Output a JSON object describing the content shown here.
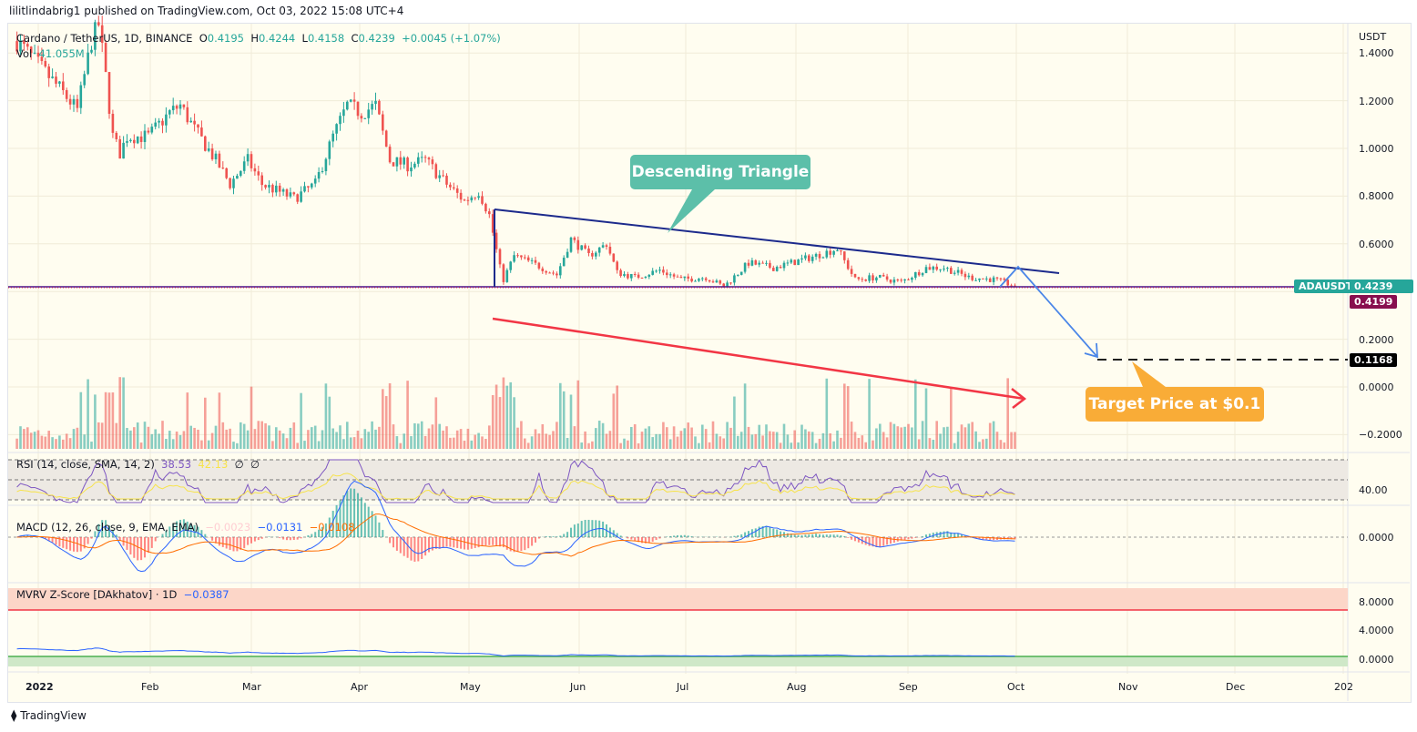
{
  "header": {
    "published": "lilitlindabrig1 published on TradingView.com, Oct 03, 2022 15:08 UTC+4"
  },
  "legend": {
    "symbol": "Cardano / TetherUS, 1D, BINANCE",
    "o_label": "O",
    "o": "0.4195",
    "h_label": "H",
    "h": "0.4244",
    "l_label": "L",
    "l": "0.4158",
    "c_label": "C",
    "c": "0.4239",
    "change": "+0.0045 (+1.07%)",
    "vol_label": "Vol",
    "vol": "41.055M"
  },
  "rsi": {
    "label": "RSI (14, close, SMA, 14, 2)",
    "v1": "38.53",
    "v2": "42.13",
    "v3": "∅",
    "v4": "∅",
    "tick": "40.00"
  },
  "macd": {
    "label": "MACD (12, 26, close, 9, EMA, EMA)",
    "hist": "−0.0023",
    "macd": "−0.0131",
    "signal": "−0.0108",
    "tick": "0.0000"
  },
  "mvrv": {
    "label": "MVRV Z-Score [DAkhatov] · 1D",
    "value": "−0.0387",
    "ticks": [
      "8.0000",
      "4.0000",
      "0.0000"
    ]
  },
  "price_axis": {
    "currency": "USDT",
    "ticks": [
      "1.4000",
      "1.2000",
      "1.0000",
      "0.8000",
      "0.6000",
      "0.2000",
      "0.0000",
      "−0.2000"
    ],
    "last_tag": "0.4239",
    "symbol_tag": "ADAUSDT",
    "low_tag": "0.4199",
    "target_tag": "0.1168"
  },
  "time_axis": [
    "2022",
    "Feb",
    "Mar",
    "Apr",
    "May",
    "Jun",
    "Jul",
    "Aug",
    "Sep",
    "Oct",
    "Nov",
    "Dec",
    "202"
  ],
  "annotations": {
    "triangle": "Descending Triangle",
    "target": "Target Price at $0.1"
  },
  "footer": {
    "brand": "TradingView"
  },
  "colors": {
    "up": "#26a69a",
    "down": "#ef5350",
    "triangle_line": "#1c2a8c",
    "bear_arrow": "#f23645",
    "projection": "#4a86e8",
    "callout_teal": "#5cbfa9",
    "callout_orange": "#f9ac37"
  },
  "chart_data": {
    "type": "candlestick",
    "symbol": "ADAUSDT",
    "ylim": [
      -0.25,
      1.5
    ],
    "closes": [
      [
        "2021-12-26",
        1.45
      ],
      [
        "2022-01-01",
        1.35
      ],
      [
        "2022-01-07",
        1.25
      ],
      [
        "2022-01-12",
        1.16
      ],
      [
        "2022-01-16",
        1.45
      ],
      [
        "2022-01-18",
        1.52
      ],
      [
        "2022-01-20",
        1.3
      ],
      [
        "2022-01-22",
        1.05
      ],
      [
        "2022-01-24",
        0.98
      ],
      [
        "2022-01-26",
        1.05
      ],
      [
        "2022-02-01",
        1.05
      ],
      [
        "2022-02-07",
        1.15
      ],
      [
        "2022-02-10",
        1.18
      ],
      [
        "2022-02-14",
        1.08
      ],
      [
        "2022-02-20",
        0.95
      ],
      [
        "2022-02-24",
        0.85
      ],
      [
        "2022-03-01",
        0.95
      ],
      [
        "2022-03-05",
        0.85
      ],
      [
        "2022-03-14",
        0.79
      ],
      [
        "2022-03-20",
        0.85
      ],
      [
        "2022-03-25",
        1.05
      ],
      [
        "2022-03-29",
        1.18
      ],
      [
        "2022-04-02",
        1.15
      ],
      [
        "2022-04-06",
        1.18
      ],
      [
        "2022-04-10",
        0.95
      ],
      [
        "2022-04-15",
        0.93
      ],
      [
        "2022-04-20",
        0.95
      ],
      [
        "2022-04-26",
        0.85
      ],
      [
        "2022-05-01",
        0.78
      ],
      [
        "2022-05-05",
        0.82
      ],
      [
        "2022-05-08",
        0.72
      ],
      [
        "2022-05-11",
        0.5
      ],
      [
        "2022-05-12",
        0.45
      ],
      [
        "2022-05-15",
        0.55
      ],
      [
        "2022-05-20",
        0.52
      ],
      [
        "2022-05-27",
        0.47
      ],
      [
        "2022-05-31",
        0.62
      ],
      [
        "2022-06-05",
        0.55
      ],
      [
        "2022-06-10",
        0.6
      ],
      [
        "2022-06-13",
        0.48
      ],
      [
        "2022-06-18",
        0.46
      ],
      [
        "2022-06-25",
        0.49
      ],
      [
        "2022-07-01",
        0.45
      ],
      [
        "2022-07-08",
        0.46
      ],
      [
        "2022-07-13",
        0.42
      ],
      [
        "2022-07-20",
        0.52
      ],
      [
        "2022-07-27",
        0.5
      ],
      [
        "2022-08-01",
        0.52
      ],
      [
        "2022-08-08",
        0.55
      ],
      [
        "2022-08-14",
        0.58
      ],
      [
        "2022-08-19",
        0.45
      ],
      [
        "2022-08-25",
        0.46
      ],
      [
        "2022-09-01",
        0.44
      ],
      [
        "2022-09-08",
        0.5
      ],
      [
        "2022-09-13",
        0.5
      ],
      [
        "2022-09-20",
        0.46
      ],
      [
        "2022-09-27",
        0.45
      ],
      [
        "2022-10-03",
        0.4239
      ]
    ]
  }
}
